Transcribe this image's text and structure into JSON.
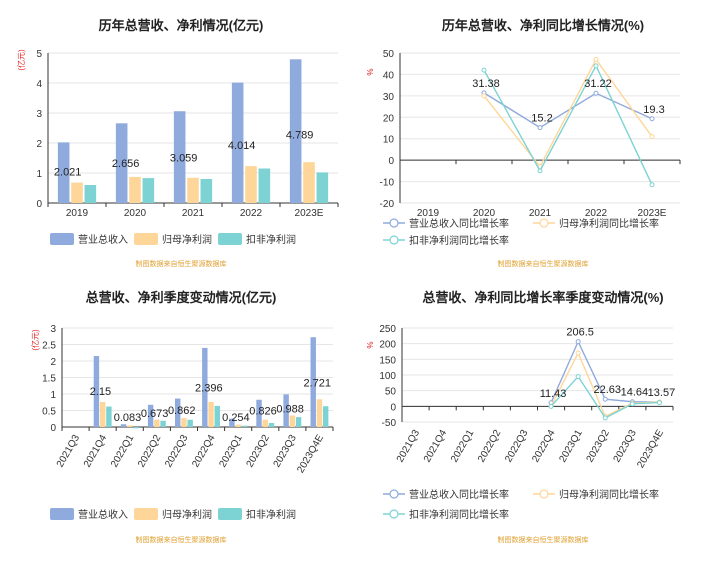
{
  "colors": {
    "revenue": "#8faadc",
    "parent_profit": "#ffd699",
    "deducted_profit": "#7dd3d3",
    "axis": "#333333",
    "grid": "#e6e6e6",
    "unit_label": "#e02020",
    "source": "#e0a030",
    "title": "#222222"
  },
  "source_note": "制图数据来自恒生聚源数据库",
  "chart_data": [
    {
      "id": "annual_amount",
      "type": "bar",
      "title": "历年总营收、净利情况(亿元)",
      "unit": "(亿元)",
      "categories": [
        "2019",
        "2020",
        "2021",
        "2022",
        "2023E"
      ],
      "ylim": [
        0,
        5
      ],
      "yticks": [
        0,
        1,
        2,
        3,
        4,
        5
      ],
      "grid": true,
      "legend": "bottom",
      "series": [
        {
          "name": "营业总收入",
          "values": [
            2.021,
            2.656,
            3.059,
            4.014,
            4.789
          ],
          "labels": [
            "2.021",
            "2.656",
            "3.059",
            "4.014",
            "4.789"
          ]
        },
        {
          "name": "归母净利润",
          "values": [
            0.68,
            0.87,
            0.84,
            1.23,
            1.36
          ]
        },
        {
          "name": "扣非净利润",
          "values": [
            0.6,
            0.83,
            0.8,
            1.15,
            1.02
          ]
        }
      ]
    },
    {
      "id": "annual_growth",
      "type": "line",
      "title": "历年总营收、净利同比增长情况(%)",
      "unit": "%",
      "categories": [
        "2019",
        "2020",
        "2021",
        "2022",
        "2023E"
      ],
      "ylim": [
        -20,
        50
      ],
      "yticks": [
        -20,
        -10,
        0,
        10,
        20,
        30,
        40,
        50
      ],
      "grid": true,
      "legend": "bottom",
      "series": [
        {
          "name": "营业总收入同比增长率",
          "values": [
            null,
            31.38,
            15.2,
            31.22,
            19.3
          ],
          "labels": [
            null,
            "31.38",
            "15.2",
            "31.22",
            "19.3"
          ]
        },
        {
          "name": "归母净利润同比增长率",
          "values": [
            null,
            30,
            -3,
            47,
            11
          ]
        },
        {
          "name": "扣非净利润同比增长率",
          "values": [
            null,
            42,
            -5,
            44,
            -11.5
          ]
        }
      ]
    },
    {
      "id": "quarterly_amount",
      "type": "bar",
      "title": "总营收、净利季度变动情况(亿元)",
      "unit": "(亿元)",
      "categories": [
        "2021Q3",
        "2021Q4",
        "2022Q1",
        "2022Q2",
        "2022Q3",
        "2022Q4",
        "2023Q1",
        "2023Q2",
        "2023Q3",
        "2023Q4E"
      ],
      "ylim": [
        0,
        3
      ],
      "yticks": [
        0,
        0.5,
        1,
        1.5,
        2,
        2.5,
        3
      ],
      "grid": true,
      "legend": "bottom",
      "series": [
        {
          "name": "营业总收入",
          "values": [
            null,
            2.15,
            0.083,
            0.673,
            0.862,
            2.396,
            0.254,
            0.826,
            0.988,
            2.721
          ],
          "labels": [
            null,
            "2.15",
            "0.083",
            "0.673",
            "0.862",
            "2.396",
            "0.254",
            "0.826",
            "0.988",
            "2.721"
          ]
        },
        {
          "name": "归母净利润",
          "values": [
            null,
            0.76,
            0.05,
            0.22,
            0.27,
            0.76,
            0.07,
            0.22,
            0.35,
            0.84
          ]
        },
        {
          "name": "扣非净利润",
          "values": [
            null,
            0.62,
            -0.04,
            0.19,
            0.22,
            0.64,
            0.04,
            0.12,
            0.3,
            0.63
          ]
        }
      ]
    },
    {
      "id": "quarterly_growth",
      "type": "line",
      "title": "总营收、净利同比增长率季度变动情况(%)",
      "unit": "%",
      "categories": [
        "2021Q3",
        "2021Q4",
        "2022Q1",
        "2022Q2",
        "2022Q3",
        "2022Q4",
        "2023Q1",
        "2023Q2",
        "2023Q3",
        "2023Q4E"
      ],
      "ylim": [
        -50,
        250
      ],
      "yticks": [
        -50,
        0,
        50,
        100,
        150,
        200,
        250
      ],
      "grid": true,
      "legend": "bottom",
      "series": [
        {
          "name": "营业总收入同比增长率",
          "values": [
            null,
            null,
            null,
            null,
            null,
            11.43,
            206.5,
            22.63,
            14.64,
            13.57
          ],
          "labels": [
            null,
            null,
            null,
            null,
            null,
            "11.43",
            "206.5",
            "22.63",
            "14.64",
            "13.57"
          ]
        },
        {
          "name": "归母净利润同比增长率",
          "values": [
            null,
            null,
            null,
            null,
            null,
            0,
            170,
            -32,
            10,
            14
          ]
        },
        {
          "name": "扣非净利润同比增长率",
          "values": [
            null,
            null,
            null,
            null,
            null,
            0,
            95,
            -37,
            8,
            12
          ]
        }
      ]
    }
  ]
}
